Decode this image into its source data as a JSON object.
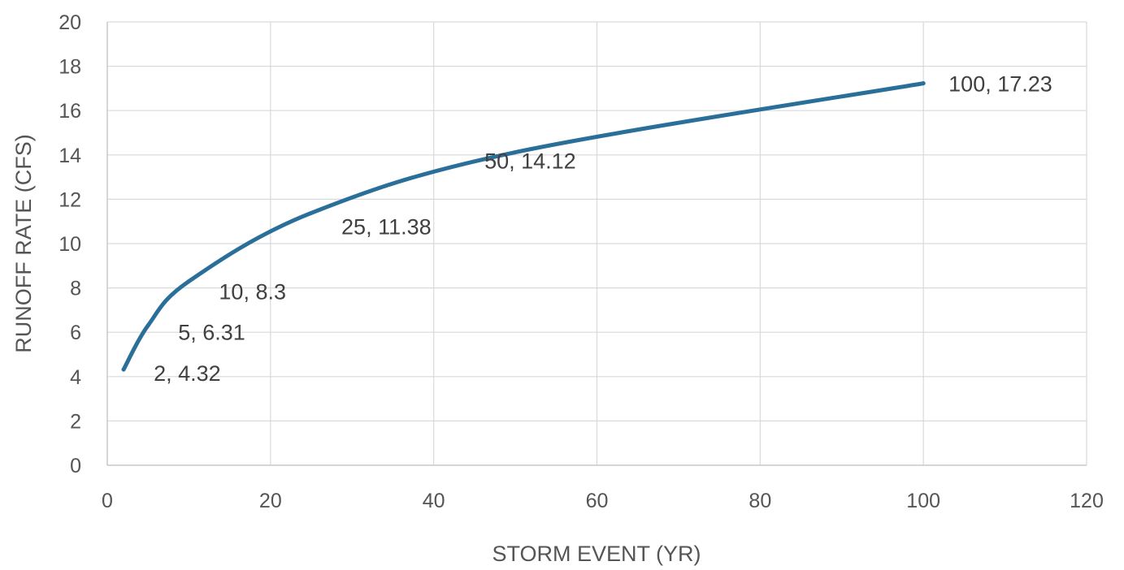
{
  "chart_data": {
    "type": "line",
    "title": "",
    "xlabel": "STORM EVENT (YR)",
    "ylabel": "RUNOFF RATE (CFS)",
    "xlim": [
      0,
      120
    ],
    "ylim": [
      0,
      20
    ],
    "xticks": [
      0,
      20,
      40,
      60,
      80,
      100,
      120
    ],
    "yticks": [
      0,
      2,
      4,
      6,
      8,
      10,
      12,
      14,
      16,
      18,
      20
    ],
    "grid": true,
    "legend": "none",
    "series": [
      {
        "color": "#2a6f99",
        "x": [
          2,
          5,
          10,
          25,
          50,
          100
        ],
        "y": [
          4.32,
          6.31,
          8.3,
          11.38,
          14.12,
          17.23
        ],
        "labels": [
          "2, 4.32",
          "5, 6.31",
          "10, 8.3",
          "25, 11.38",
          "50, 14.12",
          "100, 17.23"
        ]
      }
    ]
  }
}
